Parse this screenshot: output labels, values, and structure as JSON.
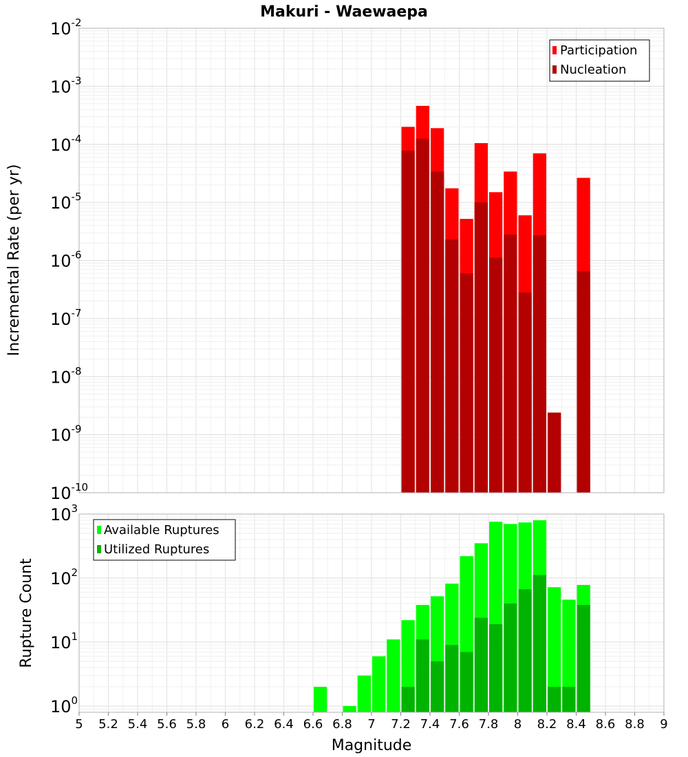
{
  "title": "Makuri - Waewaepa",
  "xlabel": "Magnitude",
  "xticks": [
    "5",
    "5.2",
    "5.4",
    "5.6",
    "5.8",
    "6",
    "6.2",
    "6.4",
    "6.6",
    "6.8",
    "7",
    "7.2",
    "7.4",
    "7.6",
    "7.8",
    "8",
    "8.2",
    "8.4",
    "8.6",
    "8.8",
    "9"
  ],
  "chart_data": [
    {
      "type": "bar",
      "ylabel": "Incremental Rate (per yr)",
      "xlim": [
        5,
        9
      ],
      "ylim": [
        1e-10,
        0.01
      ],
      "yscale": "log",
      "grid": true,
      "legend_position": "top-right",
      "bar_width": 0.1,
      "colors": {
        "Participation": "#ff0000",
        "Nucleation": "#b30000"
      },
      "yticks": [
        {
          "base": "10",
          "exp": "-10"
        },
        {
          "base": "10",
          "exp": "-9"
        },
        {
          "base": "10",
          "exp": "-8"
        },
        {
          "base": "10",
          "exp": "-7"
        },
        {
          "base": "10",
          "exp": "-6"
        },
        {
          "base": "10",
          "exp": "-5"
        },
        {
          "base": "10",
          "exp": "-4"
        },
        {
          "base": "10",
          "exp": "-3"
        },
        {
          "base": "10",
          "exp": "-2"
        }
      ],
      "x": [
        7.25,
        7.35,
        7.45,
        7.55,
        7.65,
        7.75,
        7.85,
        7.95,
        8.05,
        8.15,
        8.25,
        8.45
      ],
      "series": [
        {
          "name": "Participation",
          "values": [
            0.0002,
            0.00046,
            0.00019,
            1.75e-05,
            5.2e-06,
            0.000105,
            1.5e-05,
            3.4e-05,
            6e-06,
            7e-05,
            2.4e-09,
            2.65e-05
          ]
        },
        {
          "name": "Nucleation",
          "values": [
            7.8e-05,
            0.000125,
            3.4e-05,
            2.3e-06,
            6e-07,
            1e-05,
            1.12e-06,
            2.8e-06,
            2.8e-07,
            2.7e-06,
            2.4e-09,
            6.5e-07
          ]
        }
      ]
    },
    {
      "type": "bar",
      "ylabel": "Rupture Count",
      "xlim": [
        5,
        9
      ],
      "ylim": [
        0.8,
        1000
      ],
      "yscale": "log",
      "grid": true,
      "legend_position": "top-left",
      "bar_width": 0.1,
      "colors": {
        "Available Ruptures": "#00ff00",
        "Utilized Ruptures": "#00b300"
      },
      "yticks": [
        {
          "base": "10",
          "exp": "0",
          "value": 1
        },
        {
          "base": "10",
          "exp": "1",
          "value": 10
        },
        {
          "base": "10",
          "exp": "2",
          "value": 100
        },
        {
          "base": "10",
          "exp": "3",
          "value": 1000
        }
      ],
      "x": [
        6.65,
        6.85,
        6.95,
        7.05,
        7.15,
        7.25,
        7.35,
        7.45,
        7.55,
        7.65,
        7.75,
        7.85,
        7.95,
        8.05,
        8.15,
        8.25,
        8.35,
        8.45
      ],
      "series": [
        {
          "name": "Available Ruptures",
          "values": [
            2,
            1,
            3,
            6,
            11,
            22,
            38,
            52,
            82,
            220,
            350,
            760,
            700,
            740,
            800,
            72,
            46,
            78
          ]
        },
        {
          "name": "Utilized Ruptures",
          "values": [
            0,
            0,
            0,
            0,
            0,
            2,
            11,
            5,
            9,
            7,
            24,
            19,
            40,
            67,
            112,
            2,
            2,
            38
          ]
        }
      ]
    }
  ]
}
